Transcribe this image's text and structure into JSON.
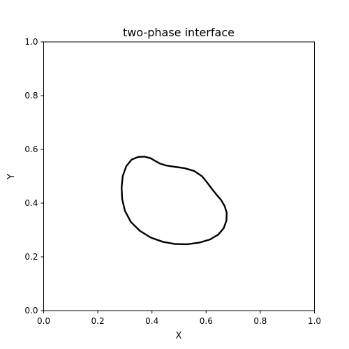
{
  "chart_data": {
    "type": "line",
    "title": "two-phase interface",
    "xlabel": "X",
    "ylabel": "Y",
    "xlim": [
      0.0,
      1.0
    ],
    "ylim": [
      0.0,
      1.0
    ],
    "xticks": [
      "0.0",
      "0.2",
      "0.4",
      "0.6",
      "0.8",
      "1.0"
    ],
    "yticks": [
      "0.0",
      "0.2",
      "0.4",
      "0.6",
      "0.8",
      "1.0"
    ],
    "grid": false,
    "line_color": "#000000",
    "series": [
      {
        "closed": true,
        "x": [
          0.372,
          0.395,
          0.412,
          0.43,
          0.452,
          0.485,
          0.52,
          0.555,
          0.585,
          0.605,
          0.622,
          0.638,
          0.655,
          0.668,
          0.676,
          0.675,
          0.665,
          0.645,
          0.615,
          0.575,
          0.53,
          0.485,
          0.44,
          0.395,
          0.355,
          0.322,
          0.3,
          0.29,
          0.288,
          0.292,
          0.305,
          0.325,
          0.35,
          0.372
        ],
        "y": [
          0.573,
          0.567,
          0.557,
          0.547,
          0.54,
          0.535,
          0.53,
          0.52,
          0.5,
          0.475,
          0.452,
          0.432,
          0.412,
          0.39,
          0.365,
          0.335,
          0.307,
          0.283,
          0.265,
          0.253,
          0.247,
          0.248,
          0.256,
          0.272,
          0.297,
          0.33,
          0.372,
          0.415,
          0.458,
          0.5,
          0.537,
          0.562,
          0.572,
          0.573
        ]
      }
    ]
  }
}
